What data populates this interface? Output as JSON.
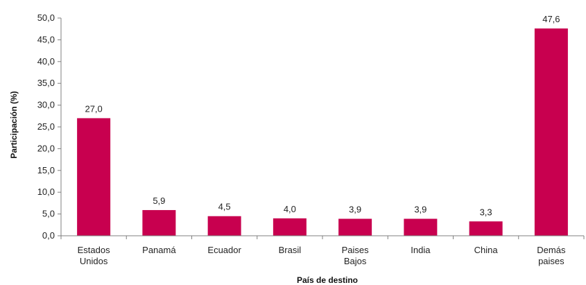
{
  "chart_data": {
    "type": "bar",
    "categories": [
      [
        "Estados",
        "Unidos"
      ],
      [
        "Panamá"
      ],
      [
        "Ecuador"
      ],
      [
        "Brasil"
      ],
      [
        "Paises",
        "Bajos"
      ],
      [
        "India"
      ],
      [
        "China"
      ],
      [
        "Demás",
        "paises"
      ]
    ],
    "values": [
      27.0,
      5.9,
      4.5,
      4.0,
      3.9,
      3.9,
      3.3,
      47.6
    ],
    "value_labels": [
      "27,0",
      "5,9",
      "4,5",
      "4,0",
      "3,9",
      "3,9",
      "3,3",
      "47,6"
    ],
    "y_ticks": [
      "0,0",
      "5,0",
      "10,0",
      "15,0",
      "20,0",
      "25,0",
      "30,0",
      "35,0",
      "40,0",
      "45,0",
      "50,0"
    ],
    "ylim": [
      0,
      50
    ],
    "xlabel": "País de destino",
    "ylabel": "Participación (%)",
    "bar_color": "#c8004f",
    "grid": false,
    "legend": "none"
  }
}
